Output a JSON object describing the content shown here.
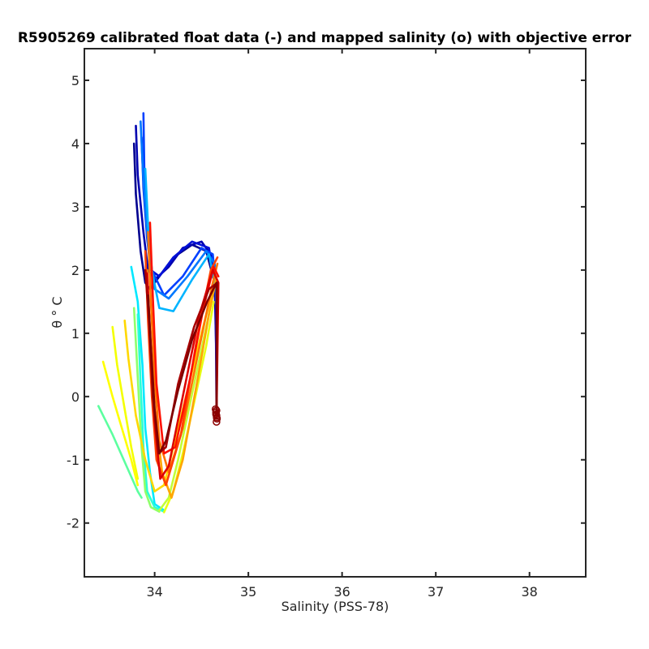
{
  "chart_data": {
    "type": "line",
    "title": "R5905269 calibrated float data (-) and mapped salinity (o) with objective error",
    "xlabel": "Salinity (PSS-78)",
    "ylabel": "θ ° C",
    "xlim": [
      33.25,
      38.6
    ],
    "ylim": [
      -2.85,
      5.5
    ],
    "xticks": [
      34,
      35,
      36,
      37,
      38
    ],
    "yticks": [
      -2,
      -1,
      0,
      1,
      2,
      3,
      4,
      5
    ],
    "grid": false,
    "colormap": "jet",
    "series": [
      {
        "color": "#00008f",
        "x": [
          33.78,
          33.8,
          33.85,
          33.9,
          33.95,
          34.05,
          34.2,
          34.4,
          34.55,
          34.64,
          34.66,
          34.66
        ],
        "y": [
          4.0,
          3.2,
          2.3,
          1.8,
          1.7,
          1.9,
          2.2,
          2.4,
          2.3,
          1.8,
          0.5,
          -0.3
        ]
      },
      {
        "color": "#0000b0",
        "x": [
          33.8,
          33.82,
          33.88,
          33.93,
          34.0,
          34.15,
          34.3,
          34.5,
          34.62,
          34.66,
          34.66
        ],
        "y": [
          4.28,
          3.5,
          2.6,
          2.0,
          1.85,
          2.05,
          2.35,
          2.45,
          2.2,
          1.2,
          -0.3
        ]
      },
      {
        "color": "#0010d8",
        "x": [
          33.86,
          33.88,
          33.92,
          33.96,
          34.05,
          34.2,
          34.4,
          34.58,
          34.65,
          34.66
        ],
        "y": [
          4.1,
          3.3,
          2.5,
          2.0,
          1.9,
          2.2,
          2.45,
          2.35,
          1.7,
          -0.25
        ]
      },
      {
        "color": "#0040ff",
        "x": [
          33.88,
          33.89,
          33.92,
          33.97,
          34.1,
          34.3,
          34.5,
          34.62,
          34.66
        ],
        "y": [
          4.48,
          3.6,
          2.7,
          2.0,
          1.6,
          1.9,
          2.35,
          2.25,
          1.6
        ]
      },
      {
        "color": "#0078ff",
        "x": [
          33.85,
          33.88,
          33.93,
          34.0,
          34.15,
          34.35,
          34.55,
          34.64,
          34.66
        ],
        "y": [
          4.35,
          3.4,
          2.4,
          1.7,
          1.55,
          1.9,
          2.3,
          2.1,
          1.4
        ]
      },
      {
        "color": "#00b4ff",
        "x": [
          33.9,
          33.93,
          33.97,
          34.05,
          34.2,
          34.4,
          34.58,
          34.65
        ],
        "y": [
          3.6,
          2.7,
          2.0,
          1.4,
          1.35,
          1.85,
          2.25,
          1.7
        ]
      },
      {
        "color": "#00e8ff",
        "x": [
          33.75,
          33.82,
          33.87,
          33.9,
          33.95,
          34.0,
          34.1
        ],
        "y": [
          2.05,
          1.5,
          0.5,
          -0.5,
          -1.2,
          -1.7,
          -1.8
        ]
      },
      {
        "color": "#2affd4",
        "x": [
          33.82,
          33.85,
          33.88,
          33.92,
          34.0,
          34.1
        ],
        "y": [
          1.3,
          0.2,
          -0.8,
          -1.5,
          -1.75,
          -1.82
        ]
      },
      {
        "color": "#5cff9f",
        "x": [
          33.4,
          33.55,
          33.7,
          33.82,
          33.86
        ],
        "y": [
          -0.15,
          -0.6,
          -1.1,
          -1.5,
          -1.6
        ]
      },
      {
        "color": "#8fff6b",
        "x": [
          33.78,
          33.82,
          33.86,
          33.9,
          33.96,
          34.05
        ],
        "y": [
          1.4,
          0.3,
          -0.8,
          -1.5,
          -1.75,
          -1.82
        ]
      },
      {
        "color": "#c2ff37",
        "x": [
          34.05,
          34.15,
          34.25,
          34.35,
          34.45,
          34.55,
          34.62
        ],
        "y": [
          -1.8,
          -1.6,
          -1.0,
          -0.3,
          0.4,
          1.1,
          1.6
        ]
      },
      {
        "color": "#f4ff00",
        "x": [
          33.55,
          33.6,
          33.68,
          33.75,
          33.82
        ],
        "y": [
          1.1,
          0.5,
          -0.2,
          -0.8,
          -1.3
        ]
      },
      {
        "color": "#ffff00",
        "x": [
          33.45,
          33.55,
          33.65,
          33.75,
          33.82
        ],
        "y": [
          0.55,
          0.0,
          -0.5,
          -1.0,
          -1.4
        ]
      },
      {
        "color": "#e6ff14",
        "x": [
          34.1,
          34.2,
          34.3,
          34.42,
          34.55,
          34.63
        ],
        "y": [
          -1.83,
          -1.5,
          -0.9,
          -0.1,
          0.8,
          1.5
        ]
      },
      {
        "color": "#ffd800",
        "x": [
          33.68,
          33.72,
          33.8,
          33.9,
          34.0,
          34.1,
          34.2,
          34.35,
          34.5,
          34.62
        ],
        "y": [
          1.2,
          0.6,
          -0.3,
          -1.0,
          -1.5,
          -1.4,
          -0.8,
          0.1,
          1.0,
          1.7
        ]
      },
      {
        "color": "#ffa600",
        "x": [
          33.92,
          33.95,
          34.0,
          34.08,
          34.18,
          34.3,
          34.45,
          34.58,
          34.66
        ],
        "y": [
          2.0,
          1.0,
          -0.2,
          -1.2,
          -1.6,
          -1.0,
          0.2,
          1.3,
          1.9
        ]
      },
      {
        "color": "#ff7400",
        "x": [
          33.93,
          33.96,
          34.0,
          34.05,
          34.15,
          34.3,
          34.48,
          34.62,
          34.67
        ],
        "y": [
          2.6,
          1.5,
          0.3,
          -0.7,
          -1.2,
          -0.5,
          0.8,
          1.8,
          2.1
        ]
      },
      {
        "color": "#ff4200",
        "x": [
          33.9,
          33.93,
          33.97,
          34.02,
          34.12,
          34.28,
          34.45,
          34.6,
          34.67
        ],
        "y": [
          2.3,
          1.2,
          0.0,
          -1.0,
          -1.4,
          -0.6,
          0.9,
          2.0,
          2.2
        ]
      },
      {
        "color": "#ff1000",
        "x": [
          33.95,
          33.98,
          34.02,
          34.1,
          34.22,
          34.38,
          34.52,
          34.63,
          34.68
        ],
        "y": [
          2.75,
          1.6,
          0.2,
          -0.9,
          -0.8,
          0.3,
          1.4,
          2.05,
          1.9
        ]
      },
      {
        "color": "#dc0000",
        "x": [
          33.92,
          33.95,
          34.0,
          34.06,
          34.15,
          34.3,
          34.48,
          34.62,
          34.68,
          34.66
        ],
        "y": [
          1.95,
          1.0,
          -0.4,
          -1.3,
          -1.1,
          0.0,
          1.3,
          2.0,
          1.8,
          -0.3
        ]
      },
      {
        "color": "#a80000",
        "x": [
          33.9,
          33.94,
          33.98,
          34.04,
          34.12,
          34.25,
          34.42,
          34.58,
          34.67,
          34.66
        ],
        "y": [
          2.0,
          1.2,
          0.0,
          -0.9,
          -0.8,
          0.2,
          1.1,
          1.7,
          1.8,
          -0.35
        ]
      },
      {
        "color": "#800000",
        "x": [
          33.93,
          33.96,
          34.0,
          34.05,
          34.12,
          34.25,
          34.4,
          34.56,
          34.66,
          34.66
        ],
        "y": [
          1.6,
          0.8,
          -0.2,
          -0.9,
          -0.7,
          0.1,
          0.9,
          1.5,
          1.8,
          -0.25
        ]
      }
    ],
    "mapped_points": {
      "color": "#8b0000",
      "x": [
        34.65,
        34.655,
        34.66,
        34.665,
        34.66,
        34.655,
        34.66,
        34.662
      ],
      "y": [
        -0.2,
        -0.25,
        -0.3,
        -0.35,
        -0.4,
        -0.28,
        -0.22,
        -0.33
      ]
    }
  }
}
